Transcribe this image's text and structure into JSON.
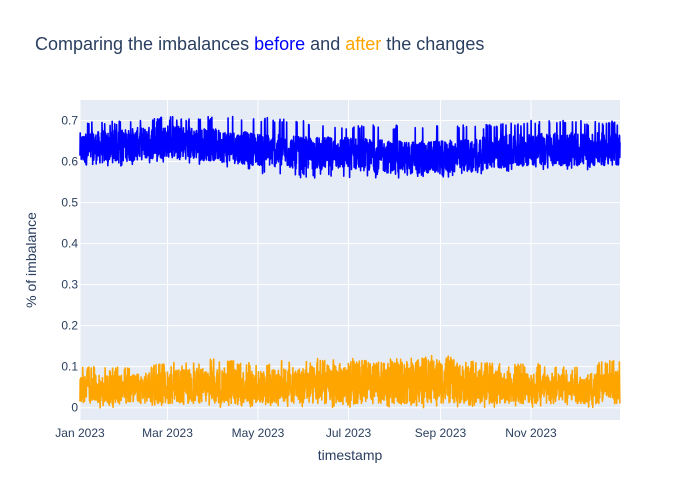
{
  "chart_data": {
    "type": "line",
    "title": {
      "segments": [
        {
          "text": "Comparing the imbalances ",
          "color": "#2a3f5f"
        },
        {
          "text": "before",
          "color": "#0000ff"
        },
        {
          "text": " and ",
          "color": "#2a3f5f"
        },
        {
          "text": "after",
          "color": "#ffa500"
        },
        {
          "text": "  the changes",
          "color": "#2a3f5f"
        }
      ]
    },
    "xlabel": "timestamp",
    "ylabel": "% of imbalance",
    "x_range": [
      "2023-01-01",
      "2023-12-31"
    ],
    "ylim": [
      -0.03,
      0.75
    ],
    "x_tick_labels": [
      "Jan 2023",
      "Mar 2023",
      "May 2023",
      "Jul 2023",
      "Sep 2023",
      "Nov 2023"
    ],
    "x_tick_dates": [
      "2023-01-01",
      "2023-03-01",
      "2023-05-01",
      "2023-07-01",
      "2023-09-01",
      "2023-11-01"
    ],
    "y_ticks": [
      0,
      0.1,
      0.2,
      0.3,
      0.4,
      0.5,
      0.6,
      0.7
    ],
    "y_tick_labels": [
      "0",
      "0.1",
      "0.2",
      "0.3",
      "0.4",
      "0.5",
      "0.6",
      "0.7"
    ],
    "grid": true,
    "legend": "none",
    "plot_bgcolor": "#e5ecf6",
    "series": [
      {
        "color": "#0000ff",
        "band": {
          "dates": [
            "2023-01-01",
            "2023-02-01",
            "2023-03-01",
            "2023-04-01",
            "2023-05-01",
            "2023-06-01",
            "2023-07-01",
            "2023-08-01",
            "2023-09-01",
            "2023-10-01",
            "2023-11-01",
            "2023-12-01",
            "2023-12-31"
          ],
          "low": [
            0.59,
            0.6,
            0.61,
            0.6,
            0.59,
            0.58,
            0.58,
            0.57,
            0.57,
            0.58,
            0.59,
            0.59,
            0.59
          ],
          "high": [
            0.67,
            0.68,
            0.69,
            0.68,
            0.67,
            0.66,
            0.66,
            0.65,
            0.65,
            0.66,
            0.67,
            0.67,
            0.67
          ],
          "peak": [
            0.7,
            0.7,
            0.71,
            0.71,
            0.71,
            0.7,
            0.69,
            0.69,
            0.69,
            0.69,
            0.7,
            0.7,
            0.7
          ],
          "trough": [
            0.58,
            0.59,
            0.6,
            0.59,
            0.57,
            0.56,
            0.56,
            0.56,
            0.56,
            0.57,
            0.58,
            0.58,
            0.58
          ]
        }
      },
      {
        "color": "#ffa500",
        "band": {
          "dates": [
            "2023-01-01",
            "2023-02-01",
            "2023-03-01",
            "2023-04-01",
            "2023-05-01",
            "2023-06-01",
            "2023-07-01",
            "2023-08-01",
            "2023-09-01",
            "2023-10-01",
            "2023-11-01",
            "2023-12-01",
            "2023-12-31"
          ],
          "low": [
            0.01,
            0.01,
            0.01,
            0.01,
            0.01,
            0.01,
            0.01,
            0.01,
            0.01,
            0.01,
            0.01,
            0.01,
            0.01
          ],
          "high": [
            0.08,
            0.08,
            0.09,
            0.1,
            0.09,
            0.1,
            0.11,
            0.11,
            0.12,
            0.09,
            0.09,
            0.08,
            0.09
          ],
          "peak": [
            0.1,
            0.1,
            0.11,
            0.12,
            0.11,
            0.12,
            0.12,
            0.12,
            0.13,
            0.11,
            0.11,
            0.1,
            0.12
          ],
          "trough": [
            0.0,
            0.0,
            0.0,
            0.0,
            0.0,
            0.0,
            0.0,
            0.0,
            0.0,
            0.0,
            0.0,
            0.0,
            0.0
          ]
        }
      }
    ]
  }
}
